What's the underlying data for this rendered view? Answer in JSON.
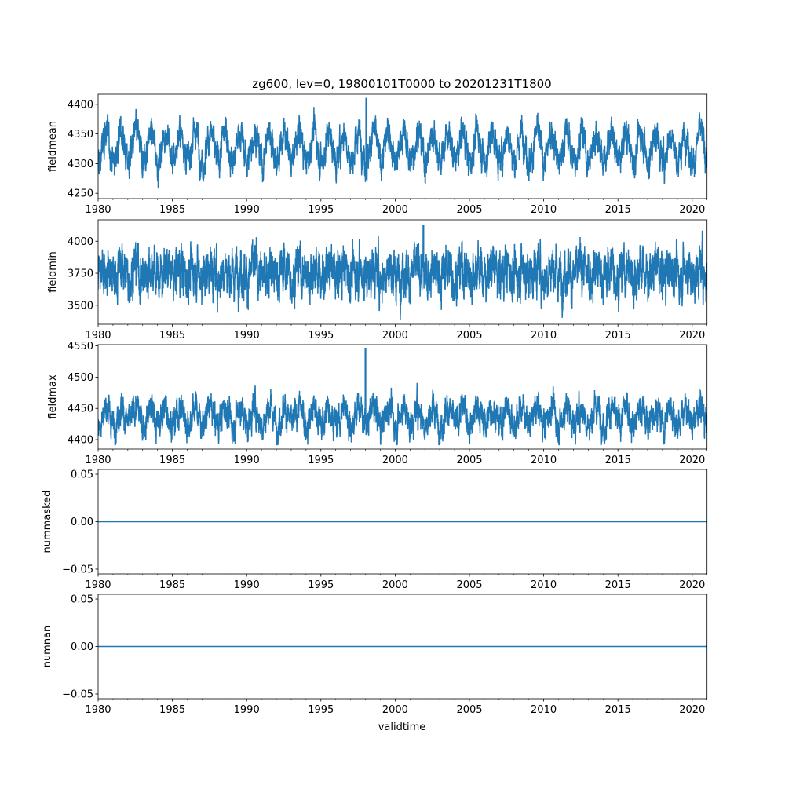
{
  "chart_data": {
    "type": "line",
    "title": "zg600, lev=0, 19800101T0000 to 20201231T1800",
    "xlabel": "validtime",
    "xlim": [
      1980,
      2021
    ],
    "xticks": [
      1980,
      1985,
      1990,
      1995,
      2000,
      2005,
      2010,
      2015,
      2020
    ],
    "line_color": "#1f77b4",
    "subplots": [
      {
        "ylabel": "fieldmean",
        "ylim": [
          4241,
          4417
        ],
        "yticks": [
          "4250",
          "4300",
          "4350",
          "4400"
        ],
        "ytick_values": [
          4250,
          4300,
          4350,
          4400
        ],
        "series_summary": {
          "mean": 4328,
          "seasonal_amplitude": 25,
          "noise": 14,
          "min": 4248,
          "max": 4410,
          "spike_year": 1998.05
        }
      },
      {
        "ylabel": "fieldmin",
        "ylim": [
          3352,
          4167
        ],
        "yticks": [
          "3500",
          "3750",
          "4000"
        ],
        "ytick_values": [
          3500,
          3750,
          4000
        ],
        "series_summary": {
          "mean": 3760,
          "seasonal_amplitude": 40,
          "noise": 95,
          "min": 3380,
          "max": 4125,
          "spike_year": 2001.9
        }
      },
      {
        "ylabel": "fieldmax",
        "ylim": [
          4385,
          4552
        ],
        "yticks": [
          "4400",
          "4450",
          "4500",
          "4550"
        ],
        "ytick_values": [
          4400,
          4450,
          4500,
          4550
        ],
        "series_summary": {
          "mean": 4438,
          "seasonal_amplitude": 14,
          "noise": 13,
          "min": 4392,
          "max": 4546,
          "spike_year": 1998.0
        }
      },
      {
        "ylabel": "nummasked",
        "ylim": [
          -0.055,
          0.055
        ],
        "yticks": [
          "−0.05",
          "0.00",
          "0.05"
        ],
        "ytick_values": [
          -0.05,
          0,
          0.05
        ],
        "series_summary": {
          "constant": 0
        }
      },
      {
        "ylabel": "numnan",
        "ylim": [
          -0.055,
          0.055
        ],
        "yticks": [
          "−0.05",
          "0.00",
          "0.05"
        ],
        "ytick_values": [
          -0.05,
          0,
          0.05
        ],
        "series_summary": {
          "constant": 0
        }
      }
    ]
  }
}
